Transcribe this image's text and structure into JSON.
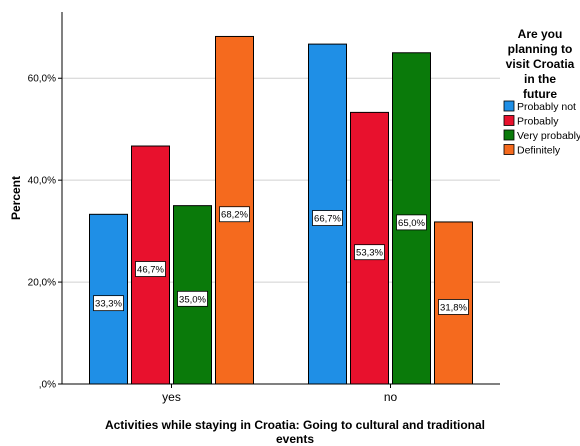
{
  "chart_data": {
    "type": "bar",
    "title": "",
    "xlabel": "Activities while staying in Croatia: Going to cultural and traditional events",
    "ylabel": "Percent",
    "categories": [
      "yes",
      "no"
    ],
    "ylim": [
      0,
      73
    ],
    "yticks": [
      0,
      20,
      40,
      60
    ],
    "ytick_labels": [
      ",0%",
      "20,0%",
      "40,0%",
      "60,0%"
    ],
    "grid": true,
    "legend_title": "Are you planning to visit Croatia in the future",
    "legend_title_lines": [
      "Are you",
      "planning to",
      "visit Croatia",
      "in the",
      "future"
    ],
    "legend_position": "right",
    "series": [
      {
        "name": "Probably not",
        "color": "#1f8fe6",
        "values": [
          33.3,
          66.7
        ],
        "labels": [
          "33,3%",
          "66,7%"
        ]
      },
      {
        "name": "Probably",
        "color": "#e8112d",
        "values": [
          46.7,
          53.3
        ],
        "labels": [
          "46,7%",
          "53,3%"
        ]
      },
      {
        "name": "Very probably",
        "color": "#0a7a0a",
        "values": [
          35.0,
          65.0
        ],
        "labels": [
          "35,0%",
          "65,0%"
        ]
      },
      {
        "name": "Definitely",
        "color": "#f56a1e",
        "values": [
          68.2,
          31.8
        ],
        "labels": [
          "68,2%",
          "31,8%"
        ]
      }
    ]
  }
}
